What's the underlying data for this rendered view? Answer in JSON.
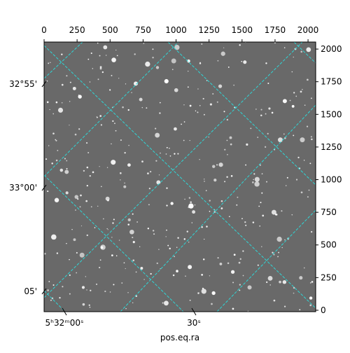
{
  "chart_data": {
    "type": "image",
    "xlabel": "pos.eq.ra",
    "xlim": [
      0,
      2058
    ],
    "xticks": [
      0,
      250,
      500,
      750,
      1000,
      1250,
      1500,
      1750,
      2000
    ],
    "ylim": [
      -11,
      2054
    ],
    "yticks": [
      0,
      250,
      500,
      750,
      1000,
      1250,
      1500,
      1750,
      2000
    ],
    "wcs_x_ticks": [
      {
        "value": 154,
        "label": "5ʰ32ᵐ00ˢ"
      },
      {
        "value": 1135,
        "label": "30ˢ"
      }
    ],
    "wcs_y_ticks": [
      {
        "value": 1732,
        "label": "32°55'"
      },
      {
        "value": 938,
        "label": "33°00'"
      },
      {
        "value": 145,
        "label": "05'"
      }
    ],
    "grid_color": "#2fd6d6"
  }
}
